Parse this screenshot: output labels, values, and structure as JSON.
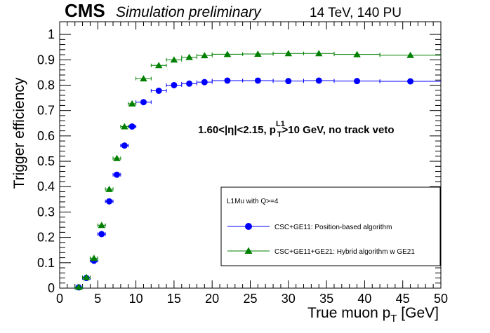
{
  "header": {
    "cms": "CMS",
    "simulation": "Simulation preliminary",
    "energy": "14 TeV, 140 PU"
  },
  "annotation": {
    "cut_prefix": "1.60<|η|<2.15, p",
    "cut_sub": "T",
    "cut_sup": "L1",
    "cut_suffix": ">10 GeV, no track veto"
  },
  "legend": {
    "header": "L1Mu with Q>=4"
  },
  "chart_data": {
    "type": "scatter",
    "xlabel_main": "True muon p",
    "xlabel_sub": "T",
    "xlabel_unit": " [GeV]",
    "ylabel": "Trigger efficiency",
    "xlim": [
      0,
      50
    ],
    "ylim": [
      0,
      1.05
    ],
    "x_ticks": [
      0,
      5,
      10,
      15,
      20,
      25,
      30,
      35,
      40,
      45,
      50
    ],
    "y_ticks": [
      0,
      0.1,
      0.2,
      0.3,
      0.4,
      0.5,
      0.6,
      0.7,
      0.8,
      0.9,
      1
    ],
    "x_tick_labels": [
      "0",
      "5",
      "10",
      "15",
      "20",
      "25",
      "30",
      "35",
      "40",
      "45",
      "50"
    ],
    "y_tick_labels": [
      "0",
      "0.1",
      "0.2",
      "0.3",
      "0.4",
      "0.5",
      "0.6",
      "0.7",
      "0.8",
      "0.9",
      "1"
    ],
    "grid": false,
    "legend_position": "right",
    "series": [
      {
        "name": "CSC+GE11: Position-based algorithm",
        "color": "#0000ff",
        "marker": "circle",
        "points": [
          {
            "x": 2.5,
            "y": 0.003,
            "xerr": 0.5
          },
          {
            "x": 3.5,
            "y": 0.04,
            "xerr": 0.5
          },
          {
            "x": 4.5,
            "y": 0.108,
            "xerr": 0.5
          },
          {
            "x": 5.5,
            "y": 0.213,
            "xerr": 0.5
          },
          {
            "x": 6.5,
            "y": 0.342,
            "xerr": 0.5
          },
          {
            "x": 7.5,
            "y": 0.447,
            "xerr": 0.5
          },
          {
            "x": 8.5,
            "y": 0.562,
            "xerr": 0.5
          },
          {
            "x": 9.5,
            "y": 0.637,
            "xerr": 0.5
          },
          {
            "x": 11,
            "y": 0.733,
            "xerr": 1
          },
          {
            "x": 13,
            "y": 0.778,
            "xerr": 1
          },
          {
            "x": 15,
            "y": 0.8,
            "xerr": 1
          },
          {
            "x": 17,
            "y": 0.806,
            "xerr": 1
          },
          {
            "x": 19,
            "y": 0.812,
            "xerr": 1
          },
          {
            "x": 22,
            "y": 0.818,
            "xerr": 2
          },
          {
            "x": 26,
            "y": 0.818,
            "xerr": 2
          },
          {
            "x": 30,
            "y": 0.816,
            "xerr": 2
          },
          {
            "x": 34,
            "y": 0.818,
            "xerr": 2
          },
          {
            "x": 39,
            "y": 0.816,
            "xerr": 3
          },
          {
            "x": 46,
            "y": 0.815,
            "xerr": 4
          }
        ]
      },
      {
        "name": "CSC+GE11+GE21: Hybrid algorithm w GE21",
        "color": "#008000",
        "marker": "triangle",
        "points": [
          {
            "x": 2.5,
            "y": 0.004,
            "xerr": 0.5
          },
          {
            "x": 3.5,
            "y": 0.043,
            "xerr": 0.5
          },
          {
            "x": 4.5,
            "y": 0.118,
            "xerr": 0.5
          },
          {
            "x": 5.5,
            "y": 0.248,
            "xerr": 0.5
          },
          {
            "x": 6.5,
            "y": 0.39,
            "xerr": 0.5
          },
          {
            "x": 7.5,
            "y": 0.512,
            "xerr": 0.5
          },
          {
            "x": 8.5,
            "y": 0.637,
            "xerr": 0.5
          },
          {
            "x": 9.5,
            "y": 0.727,
            "xerr": 0.5
          },
          {
            "x": 11,
            "y": 0.826,
            "xerr": 1
          },
          {
            "x": 13,
            "y": 0.878,
            "xerr": 1
          },
          {
            "x": 15,
            "y": 0.9,
            "xerr": 1
          },
          {
            "x": 17,
            "y": 0.91,
            "xerr": 1
          },
          {
            "x": 19,
            "y": 0.917,
            "xerr": 1
          },
          {
            "x": 22,
            "y": 0.922,
            "xerr": 2
          },
          {
            "x": 26,
            "y": 0.923,
            "xerr": 2
          },
          {
            "x": 30,
            "y": 0.925,
            "xerr": 2
          },
          {
            "x": 34,
            "y": 0.925,
            "xerr": 2
          },
          {
            "x": 39,
            "y": 0.921,
            "xerr": 3
          },
          {
            "x": 46,
            "y": 0.918,
            "xerr": 4
          }
        ]
      }
    ]
  }
}
